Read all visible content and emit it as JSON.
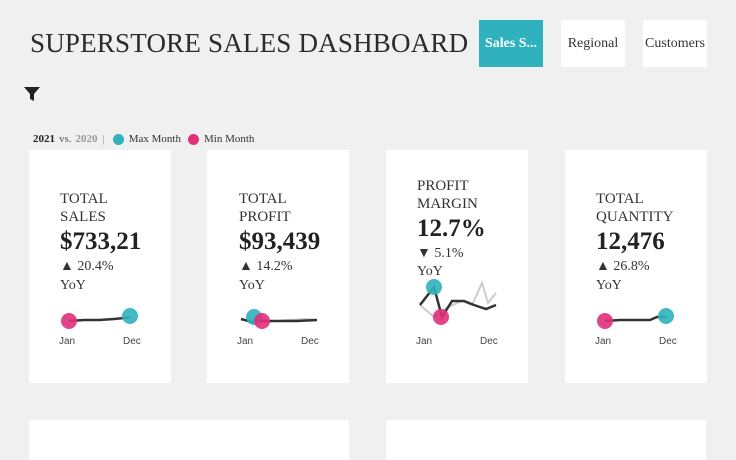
{
  "header": {
    "title": "SUPERSTORE SALES DASHBOARD",
    "tabs": [
      {
        "label": "Sales S...",
        "active": true
      },
      {
        "label": "Regional",
        "active": false
      },
      {
        "label": "Customers",
        "active": false
      }
    ]
  },
  "toolbar": {
    "filter_icon": "filter-icon"
  },
  "legend": {
    "current_year": "2021",
    "vs_label": "vs.",
    "prior_year": "2020",
    "separator": "|",
    "max_label": "Max Month",
    "min_label": "Min Month",
    "max_color": "#2fb2bd",
    "min_color": "#e0307a"
  },
  "kpis": [
    {
      "label_line1": "TOTAL",
      "label_line2": "SALES",
      "value": "$733,21",
      "change": "▲ 20.4%",
      "yoy": "YoY",
      "axis_start": "Jan",
      "axis_end": "Dec"
    },
    {
      "label_line1": "TOTAL",
      "label_line2": "PROFIT",
      "value": "$93,439",
      "change": "▲ 14.2%",
      "yoy": "YoY",
      "axis_start": "Jan",
      "axis_end": "Dec"
    },
    {
      "label_line1": "PROFIT",
      "label_line2": "MARGIN",
      "value": "12.7%",
      "change": "▼ 5.1%",
      "yoy": "YoY",
      "axis_start": "Jan",
      "axis_end": "Dec"
    },
    {
      "label_line1": "TOTAL",
      "label_line2": "QUANTITY",
      "value": "12,476",
      "change": "▲ 26.8%",
      "yoy": "YoY",
      "axis_start": "Jan",
      "axis_end": "Dec"
    }
  ],
  "colors": {
    "accent": "#2fb2bd",
    "min": "#e0307a",
    "line": "#333333",
    "prior_line": "#cccccc"
  }
}
